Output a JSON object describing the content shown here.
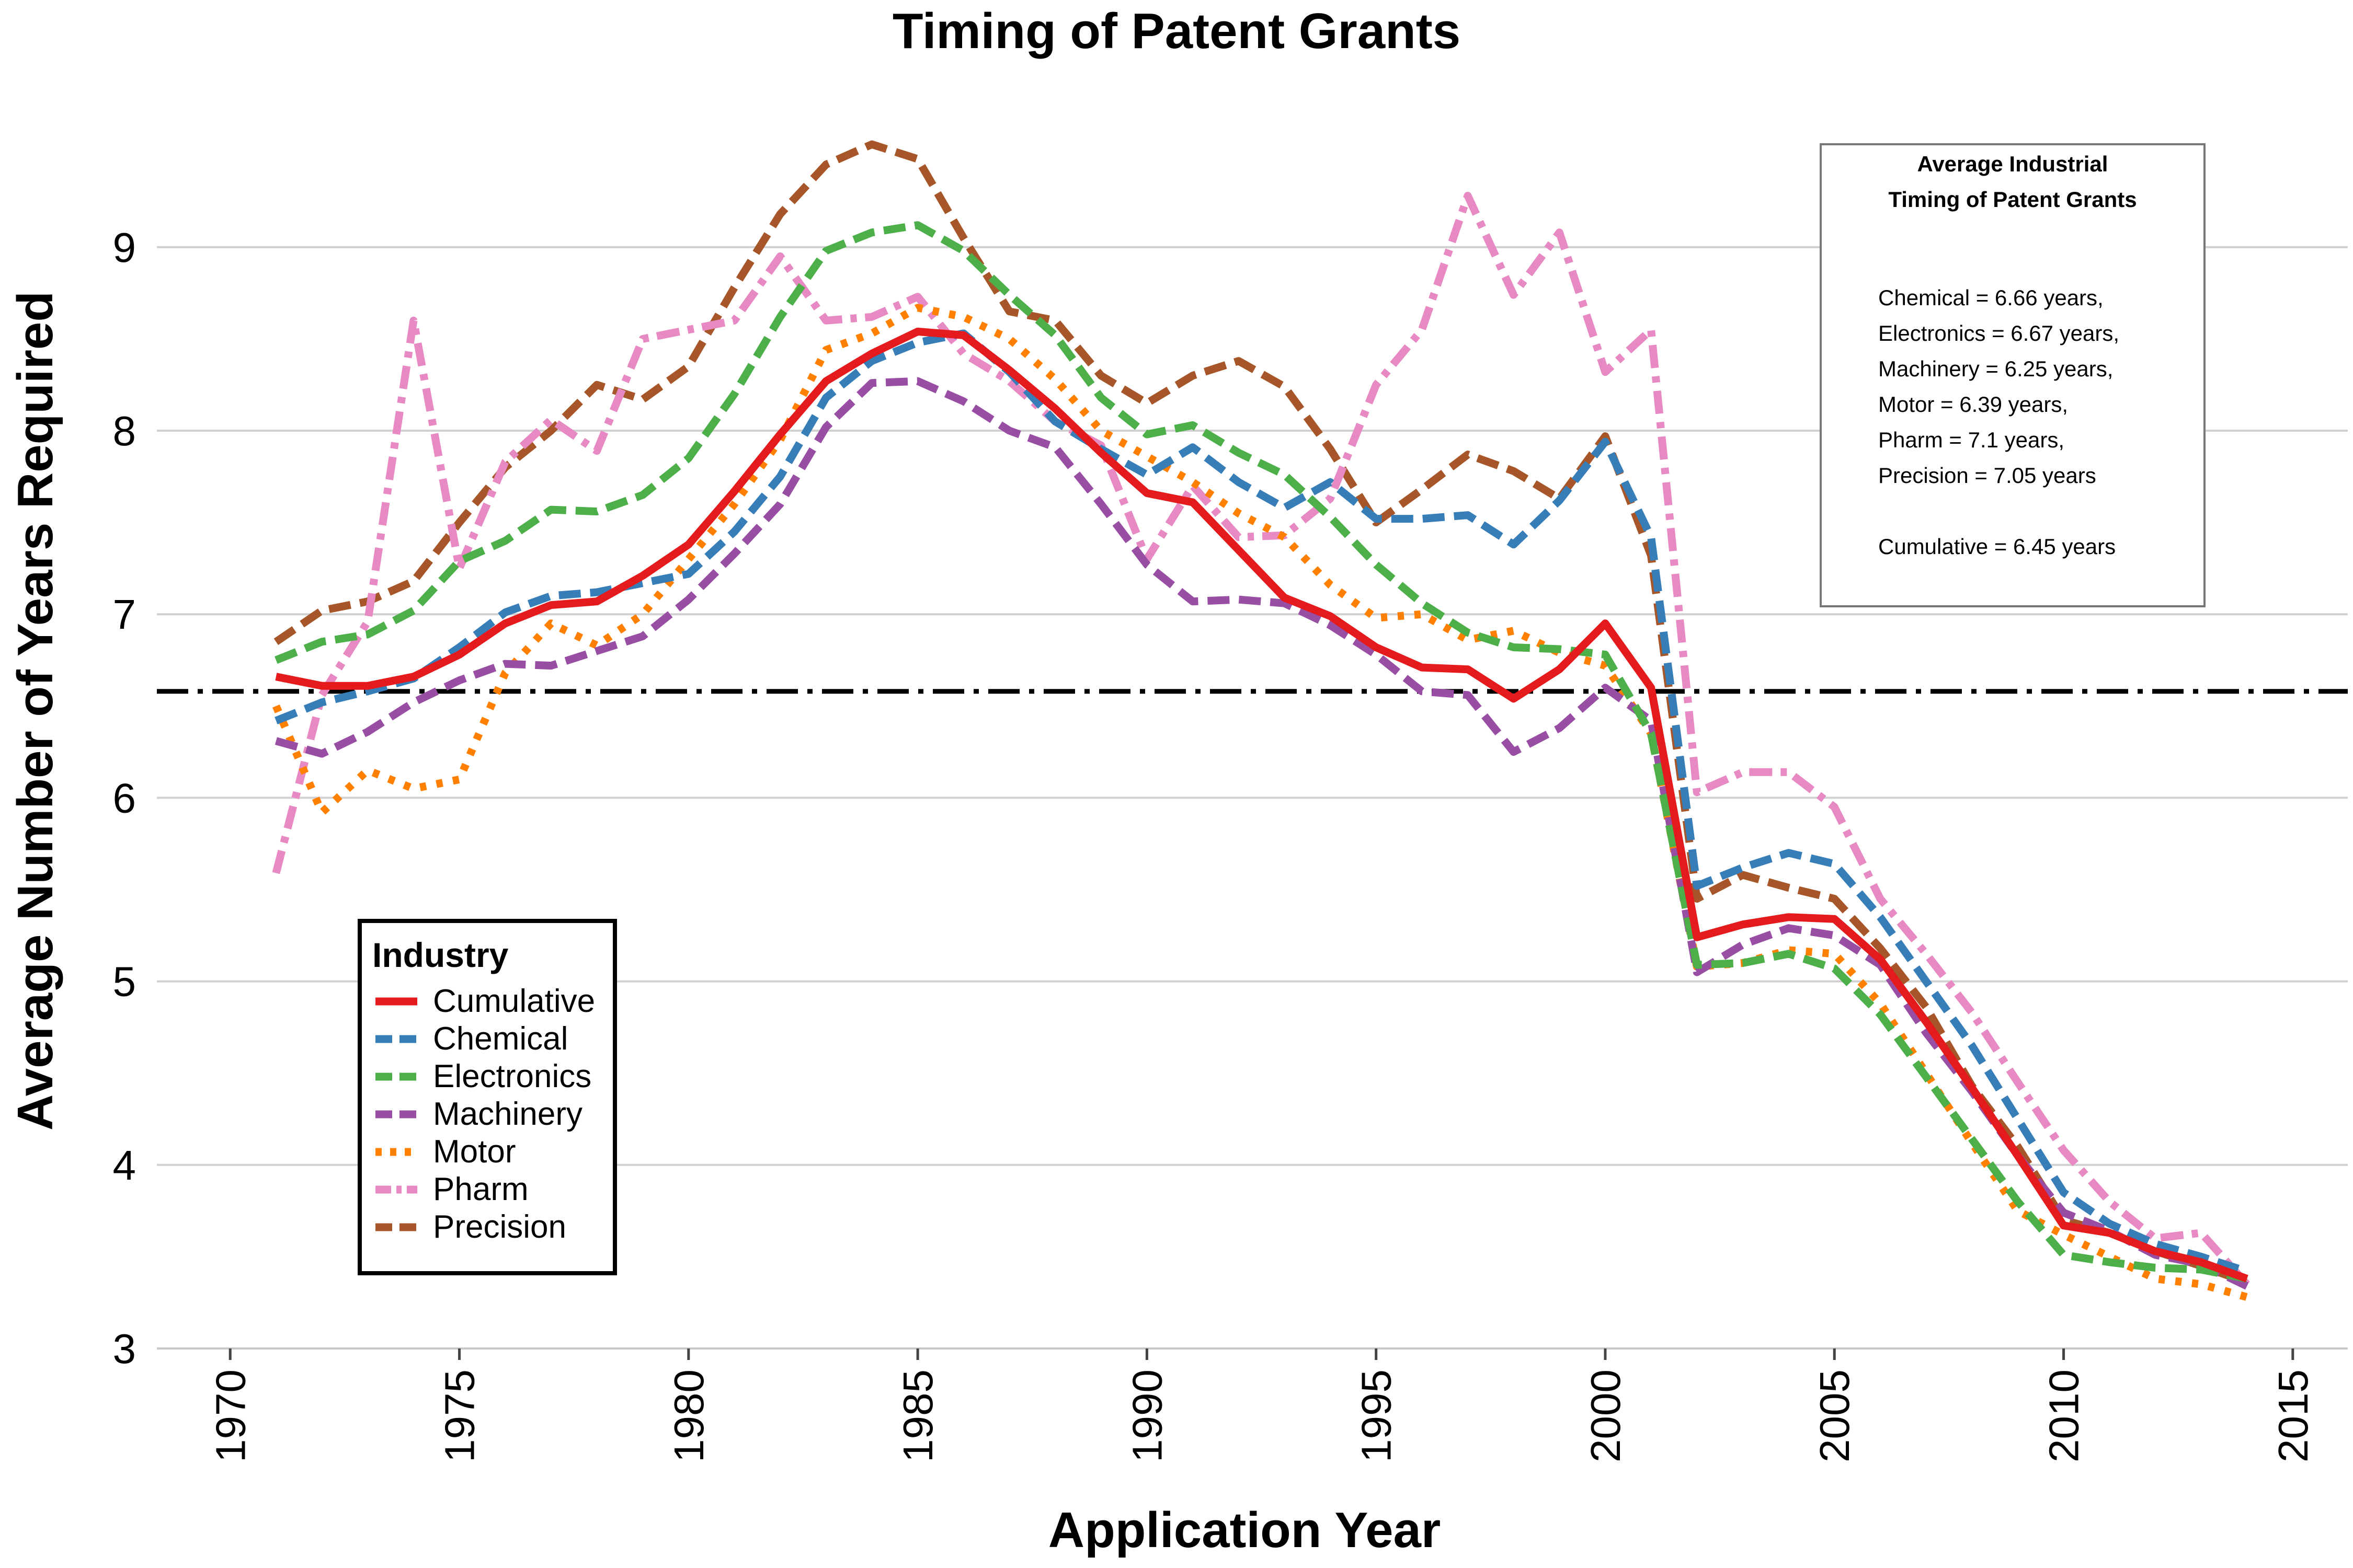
{
  "chart_data": {
    "type": "line",
    "title": "Timing of Patent Grants",
    "xlabel": "Application Year",
    "ylabel": "Average Number of Years Required",
    "xlim": [
      1970,
      2015
    ],
    "ylim": [
      3,
      9
    ],
    "x_ticks": [
      1970,
      1975,
      1980,
      1985,
      1990,
      1995,
      2000,
      2005,
      2010,
      2015
    ],
    "y_ticks": [
      3,
      4,
      5,
      6,
      7,
      8,
      9
    ],
    "grid": "horizontal",
    "legend": {
      "title": "Industry",
      "position": "bottom-left"
    },
    "reference_line": {
      "y": 6.58,
      "style": "dash-dot",
      "color": "#000000"
    },
    "annotation_box": {
      "title_lines": [
        "Average Industrial",
        "Timing of Patent Grants"
      ],
      "lines": [
        "Chemical = 6.66 years,",
        "Electronics = 6.67 years,",
        "Machinery = 6.25 years,",
        "Motor = 6.39 years,",
        "Pharm = 7.1 years,",
        "Precision = 7.05 years",
        "",
        "Cumulative = 6.45 years"
      ]
    },
    "x": [
      1971,
      1972,
      1973,
      1974,
      1975,
      1976,
      1977,
      1978,
      1979,
      1980,
      1981,
      1982,
      1983,
      1984,
      1985,
      1986,
      1987,
      1988,
      1989,
      1990,
      1991,
      1992,
      1993,
      1994,
      1995,
      1996,
      1997,
      1998,
      1999,
      2000,
      2001,
      2002,
      2003,
      2004,
      2005,
      2006,
      2007,
      2008,
      2009,
      2010,
      2011,
      2012,
      2013,
      2014
    ],
    "series": [
      {
        "name": "Cumulative",
        "color": "#e41a1c",
        "dash": "solid",
        "values": [
          6.66,
          6.61,
          6.61,
          6.66,
          6.78,
          6.95,
          7.05,
          7.07,
          7.21,
          7.38,
          7.67,
          7.98,
          8.27,
          8.42,
          8.54,
          8.52,
          8.33,
          8.12,
          7.88,
          7.66,
          7.61,
          7.35,
          7.09,
          6.99,
          6.82,
          6.71,
          6.7,
          6.54,
          6.7,
          6.95,
          6.6,
          5.24,
          5.31,
          5.35,
          5.34,
          5.12,
          4.78,
          4.42,
          4.05,
          3.67,
          3.63,
          3.53,
          3.47,
          3.38
        ]
      },
      {
        "name": "Chemical",
        "color": "#377eb8",
        "dash": "dashed",
        "values": [
          6.42,
          6.52,
          6.58,
          6.65,
          6.82,
          7.01,
          7.1,
          7.12,
          7.17,
          7.22,
          7.45,
          7.75,
          8.18,
          8.38,
          8.48,
          8.53,
          8.32,
          8.05,
          7.9,
          7.76,
          7.91,
          7.72,
          7.58,
          7.72,
          7.52,
          7.52,
          7.54,
          7.38,
          7.62,
          7.94,
          7.42,
          5.52,
          5.62,
          5.7,
          5.64,
          5.35,
          5.0,
          4.65,
          4.25,
          3.85,
          3.68,
          3.57,
          3.5,
          3.42
        ]
      },
      {
        "name": "Electronics",
        "color": "#4daf4a",
        "dash": "dashed",
        "values": [
          6.75,
          6.85,
          6.89,
          7.02,
          7.29,
          7.4,
          7.57,
          7.56,
          7.65,
          7.85,
          8.2,
          8.62,
          8.98,
          9.08,
          9.12,
          8.98,
          8.74,
          8.52,
          8.18,
          7.98,
          8.03,
          7.88,
          7.76,
          7.53,
          7.27,
          7.06,
          6.9,
          6.82,
          6.81,
          6.78,
          6.35,
          5.09,
          5.1,
          5.15,
          5.07,
          4.82,
          4.48,
          4.14,
          3.8,
          3.51,
          3.47,
          3.44,
          3.43,
          3.38
        ]
      },
      {
        "name": "Machinery",
        "color": "#984ea3",
        "dash": "dashed",
        "values": [
          6.31,
          6.24,
          6.36,
          6.52,
          6.64,
          6.73,
          6.72,
          6.8,
          6.88,
          7.08,
          7.33,
          7.6,
          8.02,
          8.26,
          8.27,
          8.16,
          8.0,
          7.91,
          7.6,
          7.27,
          7.07,
          7.08,
          7.06,
          6.94,
          6.78,
          6.58,
          6.56,
          6.25,
          6.38,
          6.6,
          6.42,
          5.05,
          5.2,
          5.29,
          5.25,
          5.09,
          4.72,
          4.4,
          4.05,
          3.74,
          3.64,
          3.51,
          3.46,
          3.34
        ]
      },
      {
        "name": "Motor",
        "color": "#ff7f00",
        "dash": "dotted",
        "values": [
          6.5,
          5.92,
          6.15,
          6.05,
          6.1,
          6.68,
          6.95,
          6.83,
          7.0,
          7.3,
          7.6,
          7.95,
          8.44,
          8.53,
          8.67,
          8.62,
          8.5,
          8.28,
          8.0,
          7.86,
          7.72,
          7.55,
          7.42,
          7.16,
          6.98,
          7.0,
          6.86,
          6.91,
          6.79,
          6.72,
          6.35,
          5.08,
          5.1,
          5.17,
          5.15,
          4.88,
          4.5,
          4.12,
          3.75,
          3.62,
          3.5,
          3.38,
          3.35,
          3.28
        ]
      },
      {
        "name": "Pharm",
        "color": "#e78ac3",
        "dash": "dashdot",
        "values": [
          5.59,
          6.56,
          6.96,
          8.6,
          7.25,
          7.83,
          8.06,
          7.89,
          8.5,
          8.55,
          8.6,
          8.95,
          8.6,
          8.62,
          8.73,
          8.42,
          8.27,
          8.05,
          7.92,
          7.3,
          7.7,
          7.42,
          7.43,
          7.63,
          8.25,
          8.55,
          9.28,
          8.74,
          9.08,
          8.32,
          8.55,
          6.03,
          6.14,
          6.14,
          5.95,
          5.45,
          5.15,
          4.83,
          4.45,
          4.08,
          3.8,
          3.6,
          3.63,
          3.35
        ]
      },
      {
        "name": "Precision",
        "color": "#a65628",
        "dash": "dashed",
        "values": [
          6.85,
          7.02,
          7.07,
          7.18,
          7.5,
          7.8,
          8.0,
          8.25,
          8.17,
          8.35,
          8.78,
          9.18,
          9.45,
          9.56,
          9.48,
          9.05,
          8.65,
          8.6,
          8.3,
          8.15,
          8.3,
          8.38,
          8.24,
          7.9,
          7.5,
          7.68,
          7.87,
          7.78,
          7.63,
          7.97,
          7.32,
          5.45,
          5.58,
          5.51,
          5.45,
          5.18,
          4.86,
          4.43,
          4.1,
          3.7,
          3.63,
          3.53,
          3.45,
          3.36
        ]
      }
    ]
  }
}
